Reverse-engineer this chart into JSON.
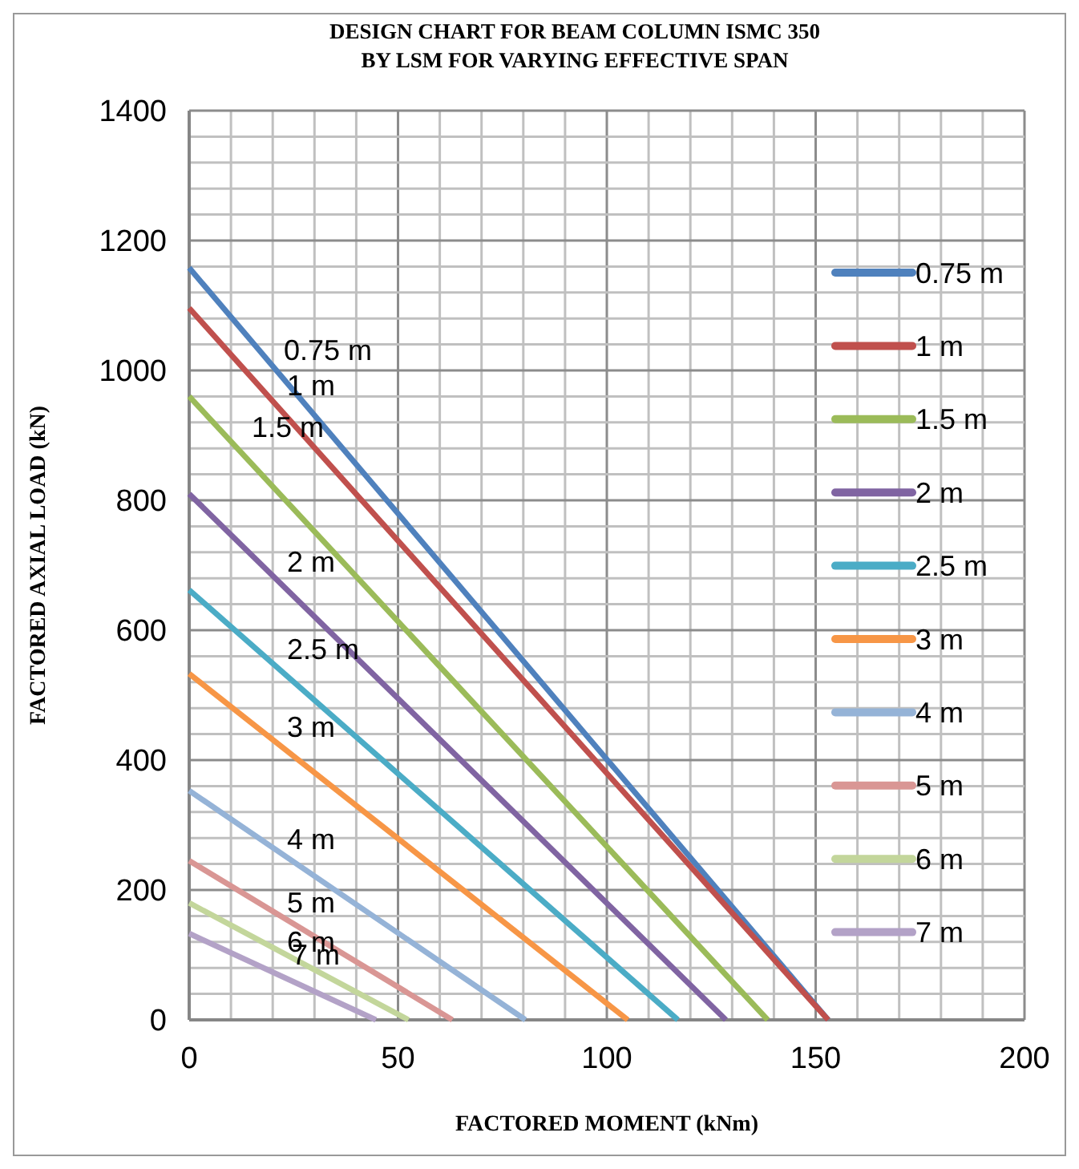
{
  "chart_data": {
    "type": "line",
    "title": "DESIGN CHART FOR BEAM COLUMN ISMC 350\nBY LSM FOR VARYING EFFECTIVE SPAN",
    "xlabel": "FACTORED MOMENT (kNm)",
    "ylabel": "FACTORED AXIAL LOAD (kN)",
    "xlim": [
      0,
      200
    ],
    "ylim": [
      0,
      1400
    ],
    "xticks": [
      0,
      {
        "value": 10,
        "label": null
      },
      {
        "value": 20,
        "label": null
      },
      {
        "value": 30,
        "label": null
      },
      {
        "value": 40,
        "label": null
      },
      50,
      {
        "value": 60,
        "label": null
      },
      {
        "value": 70,
        "label": null
      },
      {
        "value": 80,
        "label": null
      },
      {
        "value": 90,
        "label": null
      },
      100,
      {
        "value": 110,
        "label": null
      },
      {
        "value": 120,
        "label": null
      },
      {
        "value": 130,
        "label": null
      },
      {
        "value": 140,
        "label": null
      },
      150,
      {
        "value": 160,
        "label": null
      },
      {
        "value": 170,
        "label": null
      },
      {
        "value": 180,
        "label": null
      },
      {
        "value": 190,
        "label": null
      },
      200
    ],
    "yticks": [
      0,
      {
        "value": 40,
        "label": null
      },
      {
        "value": 80,
        "label": null
      },
      {
        "value": 120,
        "label": null
      },
      {
        "value": 160,
        "label": null
      },
      200,
      {
        "value": 240,
        "label": null
      },
      {
        "value": 280,
        "label": null
      },
      {
        "value": 320,
        "label": null
      },
      {
        "value": 360,
        "label": null
      },
      400,
      {
        "value": 440,
        "label": null
      },
      {
        "value": 480,
        "label": null
      },
      {
        "value": 520,
        "label": null
      },
      {
        "value": 560,
        "label": null
      },
      600,
      {
        "value": 640,
        "label": null
      },
      {
        "value": 680,
        "label": null
      },
      {
        "value": 720,
        "label": null
      },
      {
        "value": 760,
        "label": null
      },
      800,
      {
        "value": 840,
        "label": null
      },
      {
        "value": 880,
        "label": null
      },
      {
        "value": 920,
        "label": null
      },
      {
        "value": 960,
        "label": null
      },
      1000,
      {
        "value": 1040,
        "label": null
      },
      {
        "value": 1080,
        "label": null
      },
      {
        "value": 1120,
        "label": null
      },
      {
        "value": 1160,
        "label": null
      },
      1200,
      {
        "value": 1240,
        "label": null
      },
      {
        "value": 1280,
        "label": null
      },
      {
        "value": 1320,
        "label": null
      },
      {
        "value": 1360,
        "label": null
      },
      1400
    ],
    "grid": true,
    "legend": "right",
    "marker": "none",
    "line_style": "solid",
    "series": [
      {
        "name": "0.75 m",
        "color": "#4f81bd",
        "x": [
          0,
          153
        ],
        "values": [
          1158,
          0
        ]
      },
      {
        "name": "1 m",
        "color": "#c0504d",
        "x": [
          0,
          153
        ],
        "values": [
          1096,
          0
        ]
      },
      {
        "name": "1.5 m",
        "color": "#9bbb59",
        "x": [
          0,
          138.5
        ],
        "values": [
          960,
          0
        ]
      },
      {
        "name": "2 m",
        "color": "#8064a2",
        "x": [
          0,
          128.5
        ],
        "values": [
          810,
          0
        ]
      },
      {
        "name": "2.5 m",
        "color": "#4bacc6",
        "x": [
          0,
          117
        ],
        "values": [
          662,
          0
        ]
      },
      {
        "name": "3 m",
        "color": "#f79646",
        "x": [
          0,
          105
        ],
        "values": [
          533,
          0
        ]
      },
      {
        "name": "4 m",
        "color": "#95b3d7",
        "x": [
          0,
          80.5
        ],
        "values": [
          353,
          0
        ]
      },
      {
        "name": "5 m",
        "color": "#d99694",
        "x": [
          0,
          63
        ],
        "values": [
          245,
          0
        ]
      },
      {
        "name": "6 m",
        "color": "#c3d69b",
        "x": [
          0,
          52.5
        ],
        "values": [
          180,
          0
        ]
      },
      {
        "name": "7 m",
        "color": "#b3a2c7",
        "x": [
          0,
          44.7
        ],
        "values": [
          133,
          0
        ]
      }
    ],
    "annotations": [
      "0.75 m",
      "1 m",
      "1.5 m",
      "2 m",
      "2.5 m",
      "3 m",
      "4 m",
      "5 m",
      "6 m",
      "7 m"
    ]
  }
}
